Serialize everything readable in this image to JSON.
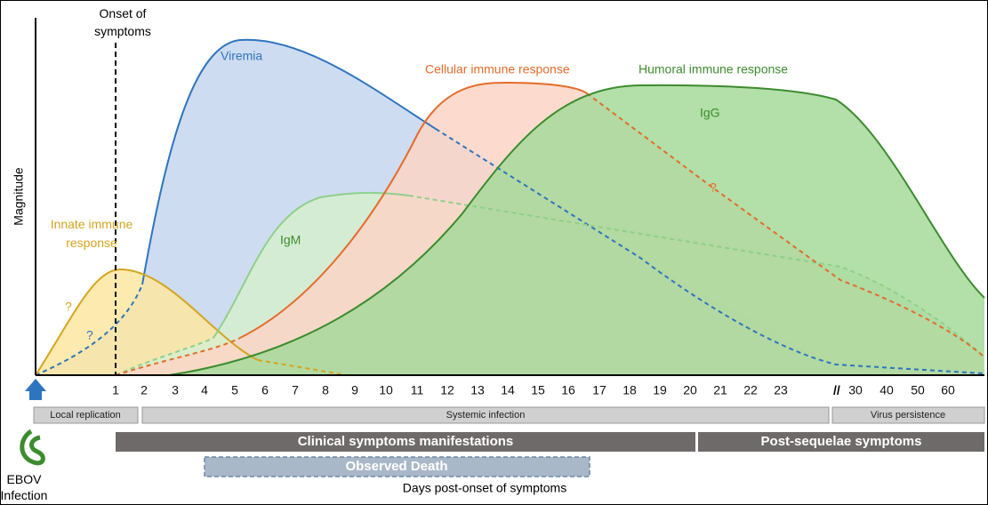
{
  "onset": {
    "lines": [
      "Onset of",
      "symptoms"
    ]
  },
  "y_axis_label": "Magnitude",
  "curves": {
    "viremia": "Viremia",
    "cellular": "Cellular immune response",
    "humoral": "Humoral immune response",
    "igg": "IgG",
    "igm": "IgM",
    "innate": {
      "lines": [
        "Innate immune",
        "response"
      ]
    }
  },
  "question_marks": [
    "?",
    "?",
    "?"
  ],
  "x_ticks": [
    "1",
    "2",
    "3",
    "4",
    "5",
    "6",
    "7",
    "8",
    "9",
    "10",
    "11",
    "12",
    "13",
    "14",
    "15",
    "16",
    "17",
    "18",
    "19",
    "20",
    "21",
    "22",
    "23",
    "30",
    "40",
    "50",
    "60"
  ],
  "phases": [
    "Local replication",
    "Systemic infection",
    "Virus persistence"
  ],
  "symptom_bars": [
    "Clinical symptoms manifestations",
    "Post-sequelae symptoms"
  ],
  "observed_death": "Observed Death",
  "x_axis_label": "Days post-onset of symptoms",
  "infection": {
    "lines": [
      "EBOV",
      "Infection"
    ]
  }
}
